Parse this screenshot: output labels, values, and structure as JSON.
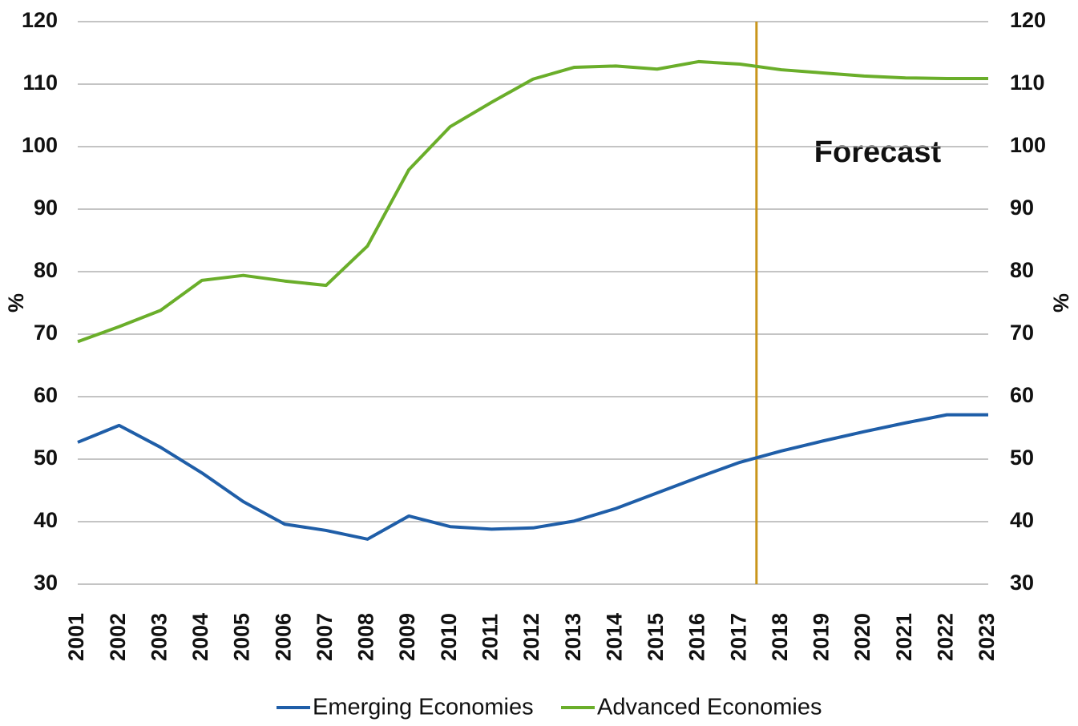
{
  "chart_data": {
    "type": "line",
    "x": [
      2001,
      2002,
      2003,
      2004,
      2005,
      2006,
      2007,
      2008,
      2009,
      2010,
      2011,
      2012,
      2013,
      2014,
      2015,
      2016,
      2017,
      2018,
      2019,
      2020,
      2021,
      2022,
      2023
    ],
    "xlim": [
      2001,
      2023
    ],
    "xticks": [
      2001,
      2002,
      2003,
      2004,
      2005,
      2006,
      2007,
      2008,
      2009,
      2010,
      2011,
      2012,
      2013,
      2014,
      2015,
      2016,
      2017,
      2018,
      2019,
      2020,
      2021,
      2022,
      2023
    ],
    "ylim": [
      30,
      120
    ],
    "yticks": [
      30,
      40,
      50,
      60,
      70,
      80,
      90,
      100,
      110,
      120
    ],
    "y2lim": [
      30,
      120
    ],
    "y2ticks": [
      30,
      40,
      50,
      60,
      70,
      80,
      90,
      100,
      110,
      120
    ],
    "y_label": "%",
    "y2_label": "%",
    "grid": true,
    "series": [
      {
        "name": "Emerging Economies",
        "color": "#1f5ea8",
        "values": [
          52.7,
          55.4,
          51.9,
          47.8,
          43.2,
          39.6,
          38.6,
          37.2,
          40.9,
          39.2,
          38.8,
          39.0,
          40.1,
          42.1,
          44.6,
          47.1,
          49.5,
          51.3,
          52.9,
          54.4,
          55.8,
          57.1,
          57.1
        ]
      },
      {
        "name": "Advanced Economies",
        "color": "#6aae2a",
        "values": [
          68.8,
          71.2,
          73.8,
          78.6,
          79.4,
          78.5,
          77.8,
          84.1,
          96.3,
          103.2,
          107.1,
          110.8,
          112.7,
          112.9,
          112.4,
          113.6,
          113.2,
          112.3,
          111.8,
          111.3,
          111.0,
          110.9,
          110.9
        ]
      }
    ],
    "forecast_line": {
      "x": 2017.4,
      "color": "#c9951b"
    },
    "annotation": "Forecast",
    "legend": "bottom"
  }
}
